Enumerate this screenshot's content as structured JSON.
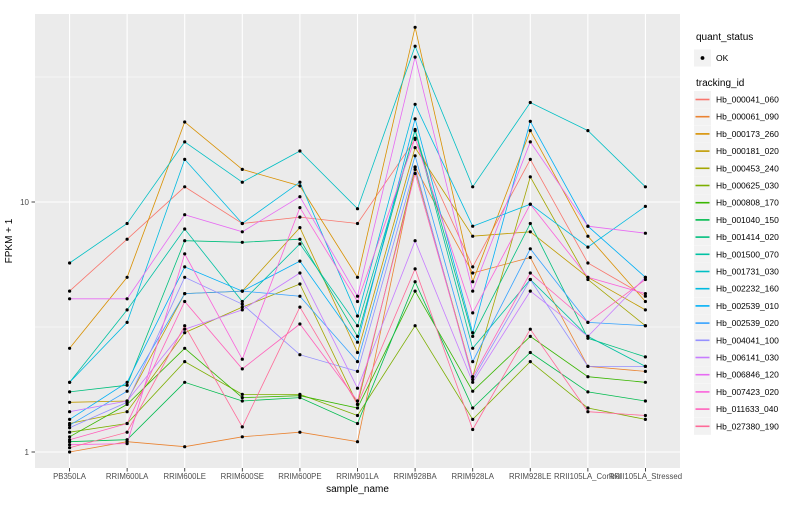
{
  "figure": {
    "background": "#FFFFFF",
    "panel_background": "#EBEBEB",
    "grid_color": "#FFFFFF",
    "tick_color": "#333333",
    "axis_text_color": "#4D4D4D",
    "title_text_color": "#000000",
    "legend_key_background": "#F2F2F2",
    "point_color": "#000000"
  },
  "legend": {
    "quant_status": {
      "title": "quant_status",
      "items": [
        {
          "label": "OK",
          "marker": "point",
          "color": "#000000"
        }
      ]
    },
    "tracking_id": {
      "title": "tracking_id"
    }
  },
  "chart_data": {
    "type": "line",
    "title": "",
    "xlabel": "sample_name",
    "ylabel": "FPKM + 1",
    "y_scale": "log10",
    "y_ticks": [
      1,
      10
    ],
    "y_tick_labels": [
      "1",
      "10"
    ],
    "y_minor_ticks": [
      3.1623,
      31.6228
    ],
    "ylim": [
      0.86,
      56
    ],
    "grid": true,
    "legend_position": "right",
    "categories": [
      "PB350LA",
      "RRIM600LA",
      "RRIM600LE",
      "RRIM600SE",
      "RRIM600PE",
      "RRIM901LA",
      "RRIM928BA",
      "RRIM928LA",
      "RRIM928LE",
      "RRII105LA_Control",
      "RRII105LA_Stressed"
    ],
    "series": [
      {
        "name": "Hb_000041_060",
        "color": "#F8766D",
        "values": [
          4.4,
          7.1,
          11.5,
          8.2,
          8.7,
          8.2,
          17.8,
          5.5,
          14.8,
          5.7,
          4.2
        ]
      },
      {
        "name": "Hb_000061_090",
        "color": "#EA8331",
        "values": [
          1.0,
          1.1,
          1.05,
          1.15,
          1.2,
          1.1,
          13.8,
          5.2,
          6.0,
          2.2,
          2.1
        ]
      },
      {
        "name": "Hb_000173_260",
        "color": "#D89000",
        "values": [
          2.6,
          5.0,
          20.9,
          13.5,
          11.6,
          5.0,
          50.0,
          4.8,
          19.3,
          7.3,
          4.0
        ]
      },
      {
        "name": "Hb_000181_020",
        "color": "#C09B00",
        "values": [
          1.58,
          1.6,
          4.3,
          4.4,
          7.9,
          2.5,
          16.5,
          7.3,
          7.6,
          5.0,
          3.7
        ]
      },
      {
        "name": "Hb_000453_240",
        "color": "#A3A500",
        "values": [
          1.3,
          1.45,
          3.0,
          3.8,
          4.7,
          1.55,
          13.5,
          2.0,
          12.6,
          4.9,
          3.2
        ]
      },
      {
        "name": "Hb_000625_030",
        "color": "#7CAE00",
        "values": [
          1.2,
          1.3,
          2.3,
          1.7,
          1.7,
          1.4,
          3.2,
          1.35,
          2.3,
          1.5,
          1.35
        ]
      },
      {
        "name": "Hb_000808_170",
        "color": "#39B600",
        "values": [
          1.15,
          1.55,
          2.6,
          1.65,
          1.68,
          1.5,
          4.4,
          1.75,
          2.9,
          2.0,
          1.9
        ]
      },
      {
        "name": "Hb_001040_150",
        "color": "#00BB4E",
        "values": [
          1.1,
          1.12,
          1.9,
          1.6,
          1.65,
          1.3,
          4.8,
          1.5,
          2.5,
          1.74,
          1.6
        ]
      },
      {
        "name": "Hb_001414_020",
        "color": "#00BF7D",
        "values": [
          1.74,
          1.85,
          7.0,
          6.9,
          7.1,
          2.9,
          19.5,
          2.9,
          8.2,
          2.85,
          2.4
        ]
      },
      {
        "name": "Hb_001500_070",
        "color": "#00C1A3",
        "values": [
          1.9,
          3.7,
          7.8,
          4.0,
          6.8,
          3.2,
          19.3,
          2.6,
          4.9,
          2.9,
          2.2
        ]
      },
      {
        "name": "Hb_001731_030",
        "color": "#00BFC4",
        "values": [
          5.7,
          8.2,
          17.4,
          12.0,
          16.0,
          9.4,
          42.0,
          11.5,
          25.0,
          19.3,
          11.5
        ]
      },
      {
        "name": "Hb_002232_160",
        "color": "#00BAE0",
        "values": [
          1.9,
          3.3,
          14.8,
          8.2,
          12.0,
          3.5,
          24.6,
          8.0,
          9.8,
          6.6,
          9.6
        ]
      },
      {
        "name": "Hb_002539_010",
        "color": "#00B0F6",
        "values": [
          1.35,
          1.9,
          5.5,
          4.4,
          5.8,
          2.75,
          21.5,
          3.0,
          21.0,
          8.0,
          5.0
        ]
      },
      {
        "name": "Hb_002539_020",
        "color": "#35A2FF",
        "values": [
          1.28,
          1.75,
          4.3,
          4.4,
          4.2,
          2.3,
          15.3,
          2.3,
          6.5,
          3.3,
          3.2
        ]
      },
      {
        "name": "Hb_004041_100",
        "color": "#9590FF",
        "values": [
          1.25,
          1.58,
          5.0,
          3.9,
          2.45,
          2.1,
          13.8,
          1.95,
          4.9,
          2.2,
          2.2
        ]
      },
      {
        "name": "Hb_006141_030",
        "color": "#C77CFF",
        "values": [
          1.45,
          1.6,
          3.1,
          3.7,
          5.2,
          1.8,
          7.0,
          1.9,
          4.4,
          2.9,
          5.0
        ]
      },
      {
        "name": "Hb_006846_120",
        "color": "#E76BF3",
        "values": [
          4.1,
          4.1,
          8.9,
          7.6,
          10.5,
          4.2,
          38.0,
          4.4,
          17.4,
          8.0,
          7.5
        ]
      },
      {
        "name": "Hb_007423_020",
        "color": "#FA62DB",
        "values": [
          1.07,
          1.08,
          6.2,
          2.35,
          9.5,
          4.0,
          18.0,
          3.6,
          9.8,
          5.0,
          4.3
        ]
      },
      {
        "name": "Hb_011633_040",
        "color": "#FF62BC",
        "values": [
          1.12,
          1.3,
          4.0,
          2.15,
          3.25,
          1.6,
          13.0,
          2.0,
          5.2,
          3.3,
          4.9
        ]
      },
      {
        "name": "Hb_027380_190",
        "color": "#FF6A98",
        "values": [
          1.04,
          1.2,
          3.2,
          1.26,
          3.8,
          1.55,
          5.4,
          1.23,
          3.1,
          1.45,
          1.4
        ]
      }
    ]
  }
}
